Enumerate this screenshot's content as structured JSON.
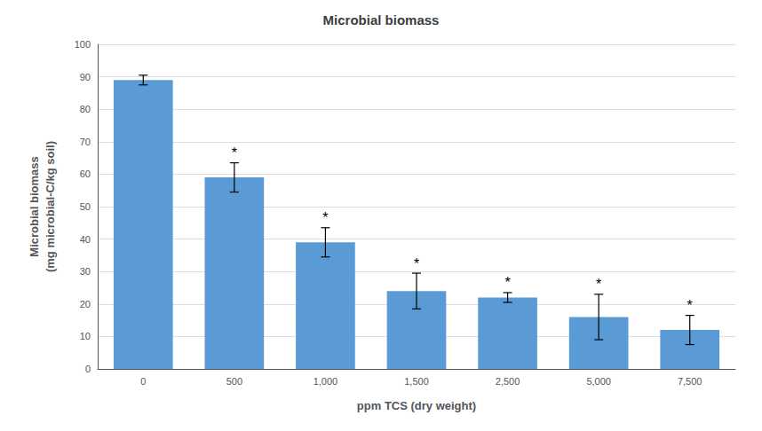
{
  "chart_data": {
    "type": "bar",
    "title": "Microbial biomass",
    "xlabel": "ppm TCS (dry weight)",
    "ylabel": "Microbial biomass\n(mg microbial-C/kg soil)",
    "categories": [
      "0",
      "500",
      "1,000",
      "1,500",
      "2,500",
      "5,000",
      "7,500"
    ],
    "values": [
      89,
      59,
      39,
      24,
      22,
      16,
      12
    ],
    "errors": [
      1.5,
      4.5,
      4.5,
      5.5,
      1.5,
      7.0,
      4.5
    ],
    "annotations": [
      {
        "category": "500",
        "text": "*"
      },
      {
        "category": "1,000",
        "text": "*"
      },
      {
        "category": "1,500",
        "text": "*"
      },
      {
        "category": "2,500",
        "text": "*"
      },
      {
        "category": "5,000",
        "text": "*"
      },
      {
        "category": "7,500",
        "text": "*"
      }
    ],
    "color": "#5b9bd5",
    "ylim": [
      0,
      100
    ],
    "yticks": [
      0,
      10,
      20,
      30,
      40,
      50,
      60,
      70,
      80,
      90,
      100
    ],
    "grid": true
  }
}
